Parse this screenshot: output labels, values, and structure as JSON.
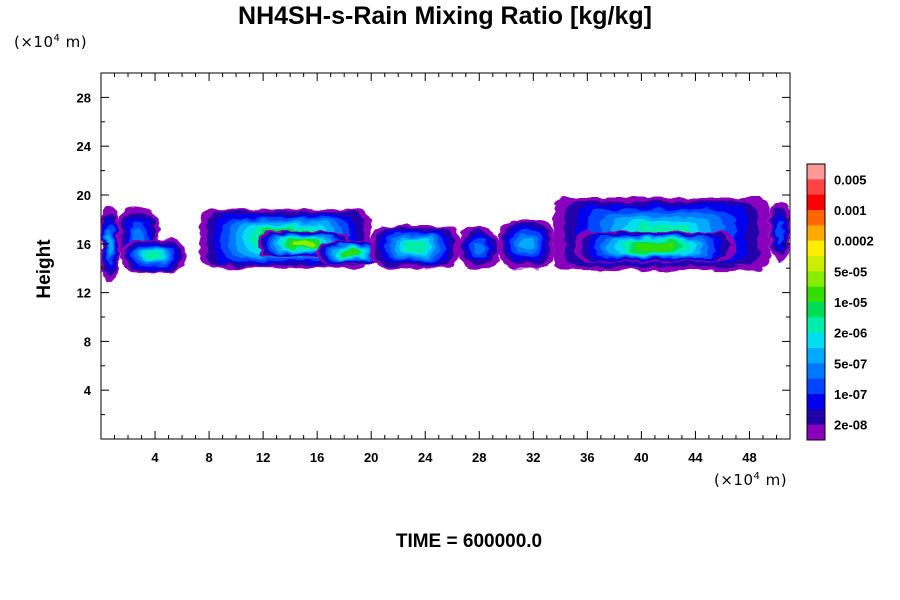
{
  "title": "NH4SH-s-Rain Mixing Ratio [kg/kg]",
  "y_unit_prefix": "(×10",
  "y_unit_exp": "4",
  "y_unit_suffix": " m)",
  "x_unit_prefix": "(×10",
  "x_unit_exp": "4",
  "x_unit_suffix": " m)",
  "ylabel": "Height",
  "time_label": "TIME = 600000.0",
  "chart_data": {
    "type": "heatmap",
    "title": "NH4SH-s-Rain Mixing Ratio [kg/kg]",
    "xlabel": "",
    "ylabel": "Height",
    "x_unit": "(×10^4 m)",
    "y_unit": "(×10^4 m)",
    "xlim": [
      0,
      51
    ],
    "ylim": [
      0,
      30
    ],
    "x_ticks": [
      4,
      8,
      12,
      16,
      20,
      24,
      28,
      32,
      36,
      40,
      44,
      48
    ],
    "y_ticks": [
      4,
      8,
      12,
      16,
      20,
      24,
      28
    ],
    "colorbar": {
      "labels": [
        "0.005",
        "0.001",
        "0.0002",
        "5e-05",
        "1e-05",
        "2e-06",
        "5e-07",
        "1e-07",
        "2e-08"
      ],
      "colors": [
        "#ff9999",
        "#ff4444",
        "#ff0000",
        "#ff6600",
        "#ffaa00",
        "#ffee00",
        "#ccee00",
        "#88ee00",
        "#33dd00",
        "#00dd55",
        "#00eeaa",
        "#00ddee",
        "#00aaff",
        "#0077ff",
        "#0044ff",
        "#0000ee",
        "#2200aa",
        "#8800bb"
      ]
    },
    "regions": [
      {
        "x": [
          0.0,
          1.3
        ],
        "y": [
          13.0,
          19.0
        ],
        "level": 0.4
      },
      {
        "x": [
          1.3,
          4.2
        ],
        "y": [
          14.2,
          19.0
        ],
        "level": 0.35
      },
      {
        "x": [
          1.5,
          6.3
        ],
        "y": [
          13.7,
          16.3
        ],
        "level": 0.55
      },
      {
        "x": [
          7.3,
          20.0
        ],
        "y": [
          14.0,
          18.8
        ],
        "level": 0.7
      },
      {
        "x": [
          11.5,
          18.5
        ],
        "y": [
          15.0,
          17.0
        ],
        "level": 0.8
      },
      {
        "x": [
          16.0,
          21.0
        ],
        "y": [
          14.3,
          16.2
        ],
        "level": 0.7
      },
      {
        "x": [
          20.0,
          26.5
        ],
        "y": [
          14.0,
          17.5
        ],
        "level": 0.55
      },
      {
        "x": [
          26.5,
          29.5
        ],
        "y": [
          14.0,
          17.3
        ],
        "level": 0.35
      },
      {
        "x": [
          29.5,
          33.5
        ],
        "y": [
          14.0,
          18.0
        ],
        "level": 0.45
      },
      {
        "x": [
          33.5,
          49.5
        ],
        "y": [
          13.8,
          19.8
        ],
        "level": 0.6
      },
      {
        "x": [
          35.0,
          47.0
        ],
        "y": [
          14.5,
          17.0
        ],
        "level": 0.7
      },
      {
        "x": [
          49.5,
          51.0
        ],
        "y": [
          14.5,
          19.5
        ],
        "level": 0.3
      }
    ]
  }
}
